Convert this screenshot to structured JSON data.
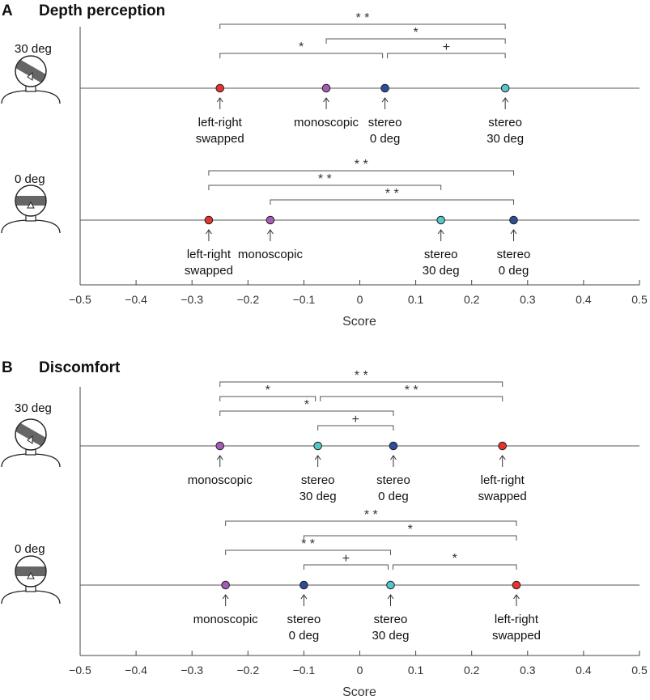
{
  "chart_data": [
    {
      "type": "scatter",
      "panel": "A",
      "title": "Depth perception",
      "xlabel": "Score",
      "xlim": [
        -0.5,
        0.5
      ],
      "xticks": [
        "−0.5",
        "−0.4",
        "−0.3",
        "−0.2",
        "−0.1",
        "0",
        "0.1",
        "0.2",
        "0.3",
        "0.4",
        "0.5"
      ],
      "rows": [
        {
          "condition": "30 deg",
          "head_tilt": 30,
          "points": [
            {
              "label": [
                "left-right",
                "swapped"
              ],
              "value": -0.25,
              "color": "#e8322c"
            },
            {
              "label": [
                "monoscopic"
              ],
              "value": -0.06,
              "color": "#a45cb8"
            },
            {
              "label": [
                "stereo",
                "0 deg"
              ],
              "value": 0.045,
              "color": "#2b4e9b"
            },
            {
              "label": [
                "stereo",
                "30 deg"
              ],
              "value": 0.26,
              "color": "#52c8c9"
            }
          ],
          "brackets": [
            {
              "from": 0,
              "to": 3,
              "sig": "**",
              "level": 4
            },
            {
              "from": 1,
              "to": 3,
              "sig": "*",
              "level": 3
            },
            {
              "from": 0,
              "to": 2,
              "sig": "*",
              "level": 2
            },
            {
              "from": 2,
              "to": 3,
              "sig": "+",
              "level": 2
            }
          ]
        },
        {
          "condition": "0 deg",
          "head_tilt": 0,
          "points": [
            {
              "label": [
                "left-right",
                "swapped"
              ],
              "value": -0.27,
              "color": "#e8322c"
            },
            {
              "label": [
                "monoscopic"
              ],
              "value": -0.16,
              "color": "#a45cb8"
            },
            {
              "label": [
                "stereo",
                "30 deg"
              ],
              "value": 0.145,
              "color": "#52c8c9"
            },
            {
              "label": [
                "stereo",
                "0 deg"
              ],
              "value": 0.275,
              "color": "#2b4e9b"
            }
          ],
          "brackets": [
            {
              "from": 0,
              "to": 3,
              "sig": "**",
              "level": 3
            },
            {
              "from": 0,
              "to": 2,
              "sig": "**",
              "level": 2
            },
            {
              "from": 1,
              "to": 3,
              "sig": "**",
              "level": 1
            }
          ]
        }
      ]
    },
    {
      "type": "scatter",
      "panel": "B",
      "title": "Discomfort",
      "xlabel": "Score",
      "xlim": [
        -0.5,
        0.5
      ],
      "xticks": [
        "−0.5",
        "−0.4",
        "−0.3",
        "−0.2",
        "−0.1",
        "0",
        "0.1",
        "0.2",
        "0.3",
        "0.4",
        "0.5"
      ],
      "rows": [
        {
          "condition": "30 deg",
          "head_tilt": 30,
          "points": [
            {
              "label": [
                "monoscopic"
              ],
              "value": -0.25,
              "color": "#a45cb8"
            },
            {
              "label": [
                "stereo",
                "30 deg"
              ],
              "value": -0.075,
              "color": "#52c8c9"
            },
            {
              "label": [
                "stereo",
                "0 deg"
              ],
              "value": 0.06,
              "color": "#2b4e9b"
            },
            {
              "label": [
                "left-right",
                "swapped"
              ],
              "value": 0.255,
              "color": "#e8322c"
            }
          ],
          "brackets": [
            {
              "from": 0,
              "to": 3,
              "sig": "**",
              "level": 4
            },
            {
              "from": 0,
              "to": 1,
              "sig": "*",
              "level": 3
            },
            {
              "from": 1,
              "to": 3,
              "sig": "**",
              "level": 3
            },
            {
              "from": 0,
              "to": 2,
              "sig": "*",
              "level": 2
            },
            {
              "from": 1,
              "to": 2,
              "sig": "+",
              "level": 1
            }
          ]
        },
        {
          "condition": "0 deg",
          "head_tilt": 0,
          "points": [
            {
              "label": [
                "monoscopic"
              ],
              "value": -0.24,
              "color": "#a45cb8"
            },
            {
              "label": [
                "stereo",
                "0 deg"
              ],
              "value": -0.1,
              "color": "#2b4e9b"
            },
            {
              "label": [
                "stereo",
                "30 deg"
              ],
              "value": 0.055,
              "color": "#52c8c9"
            },
            {
              "label": [
                "left-right",
                "swapped"
              ],
              "value": 0.28,
              "color": "#e8322c"
            }
          ],
          "brackets": [
            {
              "from": 0,
              "to": 3,
              "sig": "**",
              "level": 4
            },
            {
              "from": 1,
              "to": 3,
              "sig": "*",
              "level": 3
            },
            {
              "from": 0,
              "to": 2,
              "sig": "**",
              "level": 2
            },
            {
              "from": 1,
              "to": 2,
              "sig": "+",
              "level": 1
            },
            {
              "from": 2,
              "to": 3,
              "sig": "*",
              "level": 1
            }
          ]
        }
      ]
    }
  ]
}
